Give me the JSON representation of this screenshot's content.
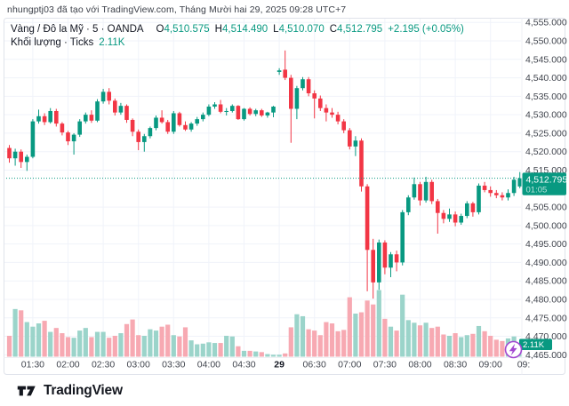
{
  "attribution": "nhungptj03 đã tạo với TradingView.com, Tháng Mười hai 29, 2025 09:28 UTC+7",
  "legend": {
    "symbol": "Vàng / Đô la Mỹ · 5 · OANDA",
    "ohlc": [
      {
        "label": "O",
        "value": "4,510.575"
      },
      {
        "label": "H",
        "value": "4,514.490"
      },
      {
        "label": "L",
        "value": "4,510.070"
      },
      {
        "label": "C",
        "value": "4,512.795"
      }
    ],
    "change": "+2.195 (+0.05%)",
    "volume_label": "Khối lượng · Ticks",
    "volume_value": "2.11K"
  },
  "price_axis": {
    "labels": [
      {
        "text": "4,555.000",
        "value": 4555
      },
      {
        "text": "4,550.000",
        "value": 4550
      },
      {
        "text": "4,545.000",
        "value": 4545
      },
      {
        "text": "4,540.000",
        "value": 4540
      },
      {
        "text": "4,535.000",
        "value": 4535
      },
      {
        "text": "4,530.000",
        "value": 4530
      },
      {
        "text": "4,525.000",
        "value": 4525
      },
      {
        "text": "4,520.000",
        "value": 4520
      },
      {
        "text": "4,515.000",
        "value": 4515
      },
      {
        "text": "4,505.000",
        "value": 4505
      },
      {
        "text": "4,500.000",
        "value": 4500
      },
      {
        "text": "4,495.000",
        "value": 4495
      },
      {
        "text": "4,490.000",
        "value": 4490
      },
      {
        "text": "4,485.000",
        "value": 4485
      },
      {
        "text": "4,480.000",
        "value": 4480
      },
      {
        "text": "4,475.000",
        "value": 4475
      },
      {
        "text": "4,470.000",
        "value": 4470
      },
      {
        "text": "4,465.000",
        "value": 4465
      }
    ],
    "current_price_label": "4,512.795",
    "countdown": "01:05",
    "volume_marker": "2.11K"
  },
  "time_axis": {
    "ticks": [
      {
        "label": "01:30",
        "index": 4,
        "bold": false
      },
      {
        "label": "02:00",
        "index": 10,
        "bold": false
      },
      {
        "label": "02:30",
        "index": 16,
        "bold": false
      },
      {
        "label": "03:00",
        "index": 22,
        "bold": false
      },
      {
        "label": "03:30",
        "index": 28,
        "bold": false
      },
      {
        "label": "04:00",
        "index": 34,
        "bold": false
      },
      {
        "label": "04:30",
        "index": 40,
        "bold": false
      },
      {
        "label": "29",
        "index": 46,
        "bold": true
      },
      {
        "label": "06:30",
        "index": 52,
        "bold": false
      },
      {
        "label": "07:00",
        "index": 58,
        "bold": false
      },
      {
        "label": "07:30",
        "index": 64,
        "bold": false
      },
      {
        "label": "08:00",
        "index": 70,
        "bold": false
      },
      {
        "label": "08:30",
        "index": 76,
        "bold": false
      },
      {
        "label": "09:00",
        "index": 82,
        "bold": false
      },
      {
        "label": "09:",
        "index": 88,
        "bold": false
      }
    ]
  },
  "footer": {
    "logo_text": "TradingView"
  },
  "colors": {
    "up": "#089981",
    "down": "#F23645",
    "vol_up": "#9BD4CA",
    "vol_down": "#F7A9B2",
    "badge_bg": "#089981",
    "grid": "#F0F3FA",
    "axis_text": "#42464F",
    "bold_text": "#131722",
    "border": "#E0E3EB",
    "flash_icon": "#A347D1"
  },
  "chart_data": {
    "type": "candlestick+volume",
    "title": "Vàng / Đô la Mỹ (Gold / US Dollar), 5-minute, OANDA, Ticks volume",
    "timezone": "UTC+7",
    "ylabel": "price",
    "ylim": [
      4463,
      4557
    ],
    "grid": true,
    "current_price": 4512.795,
    "countdown": "01:05",
    "last_volume_k": 2.11,
    "volume_unit": "K ticks",
    "candles": [
      {
        "t": "01:10",
        "o": 4521.0,
        "h": 4521.8,
        "l": 4517.0,
        "c": 4518.2,
        "v": 3.2
      },
      {
        "t": "01:15",
        "o": 4518.2,
        "h": 4520.8,
        "l": 4516.2,
        "c": 4520.0,
        "v": 7.3
      },
      {
        "t": "01:20",
        "o": 4520.0,
        "h": 4520.6,
        "l": 4515.6,
        "c": 4517.2,
        "v": 7.1
      },
      {
        "t": "01:25",
        "o": 4517.2,
        "h": 4519.2,
        "l": 4514.8,
        "c": 4518.6,
        "v": 5.3
      },
      {
        "t": "01:30",
        "o": 4518.6,
        "h": 4528.8,
        "l": 4518.2,
        "c": 4528.2,
        "v": 4.6
      },
      {
        "t": "01:35",
        "o": 4528.2,
        "h": 4531.4,
        "l": 4527.6,
        "c": 4529.6,
        "v": 5.1
      },
      {
        "t": "01:40",
        "o": 4529.6,
        "h": 4530.4,
        "l": 4527.2,
        "c": 4528.0,
        "v": 5.5
      },
      {
        "t": "01:45",
        "o": 4528.0,
        "h": 4531.8,
        "l": 4527.6,
        "c": 4531.0,
        "v": 3.8
      },
      {
        "t": "01:50",
        "o": 4531.0,
        "h": 4531.6,
        "l": 4526.8,
        "c": 4527.6,
        "v": 4.4
      },
      {
        "t": "01:55",
        "o": 4527.6,
        "h": 4528.0,
        "l": 4524.4,
        "c": 4525.2,
        "v": 3.6
      },
      {
        "t": "02:00",
        "o": 4525.2,
        "h": 4525.6,
        "l": 4521.8,
        "c": 4522.8,
        "v": 3.0
      },
      {
        "t": "02:05",
        "o": 4522.8,
        "h": 4525.0,
        "l": 4519.2,
        "c": 4524.6,
        "v": 2.9
      },
      {
        "t": "02:10",
        "o": 4524.6,
        "h": 4528.8,
        "l": 4524.0,
        "c": 4528.2,
        "v": 4.0
      },
      {
        "t": "02:15",
        "o": 4528.2,
        "h": 4530.6,
        "l": 4527.6,
        "c": 4530.0,
        "v": 4.4
      },
      {
        "t": "02:20",
        "o": 4530.0,
        "h": 4531.2,
        "l": 4527.8,
        "c": 4528.4,
        "v": 3.0
      },
      {
        "t": "02:25",
        "o": 4528.4,
        "h": 4534.2,
        "l": 4528.0,
        "c": 4533.6,
        "v": 3.8
      },
      {
        "t": "02:30",
        "o": 4533.6,
        "h": 4537.0,
        "l": 4533.0,
        "c": 4536.2,
        "v": 3.8
      },
      {
        "t": "02:35",
        "o": 4536.2,
        "h": 4537.2,
        "l": 4532.8,
        "c": 4533.8,
        "v": 2.9
      },
      {
        "t": "02:40",
        "o": 4533.8,
        "h": 4534.4,
        "l": 4529.8,
        "c": 4530.6,
        "v": 3.2
      },
      {
        "t": "02:45",
        "o": 4530.6,
        "h": 4533.2,
        "l": 4530.0,
        "c": 4532.4,
        "v": 3.6
      },
      {
        "t": "02:50",
        "o": 4532.4,
        "h": 4532.8,
        "l": 4527.8,
        "c": 4528.6,
        "v": 5.0
      },
      {
        "t": "02:55",
        "o": 4528.6,
        "h": 4529.0,
        "l": 4524.2,
        "c": 4525.4,
        "v": 5.7
      },
      {
        "t": "03:00",
        "o": 4525.4,
        "h": 4526.0,
        "l": 4520.4,
        "c": 4522.6,
        "v": 3.3
      },
      {
        "t": "03:05",
        "o": 4522.6,
        "h": 4524.8,
        "l": 4520.0,
        "c": 4524.2,
        "v": 3.2
      },
      {
        "t": "03:10",
        "o": 4524.2,
        "h": 4526.8,
        "l": 4523.6,
        "c": 4526.4,
        "v": 4.2
      },
      {
        "t": "03:15",
        "o": 4526.4,
        "h": 4529.8,
        "l": 4525.8,
        "c": 4529.2,
        "v": 4.0
      },
      {
        "t": "03:20",
        "o": 4529.2,
        "h": 4531.2,
        "l": 4527.6,
        "c": 4528.0,
        "v": 4.6
      },
      {
        "t": "03:25",
        "o": 4528.0,
        "h": 4528.6,
        "l": 4524.8,
        "c": 4525.4,
        "v": 4.9
      },
      {
        "t": "03:30",
        "o": 4525.4,
        "h": 4531.0,
        "l": 4524.8,
        "c": 4530.4,
        "v": 3.3
      },
      {
        "t": "03:35",
        "o": 4530.4,
        "h": 4530.8,
        "l": 4526.8,
        "c": 4527.2,
        "v": 3.1
      },
      {
        "t": "03:40",
        "o": 4527.2,
        "h": 4528.2,
        "l": 4525.6,
        "c": 4526.0,
        "v": 4.5
      },
      {
        "t": "03:45",
        "o": 4526.0,
        "h": 4528.0,
        "l": 4525.4,
        "c": 4527.6,
        "v": 2.5
      },
      {
        "t": "03:50",
        "o": 4527.6,
        "h": 4529.4,
        "l": 4527.0,
        "c": 4528.8,
        "v": 1.9
      },
      {
        "t": "03:55",
        "o": 4528.8,
        "h": 4530.6,
        "l": 4528.2,
        "c": 4530.0,
        "v": 2.0
      },
      {
        "t": "04:00",
        "o": 4530.0,
        "h": 4532.8,
        "l": 4529.6,
        "c": 4532.2,
        "v": 2.2
      },
      {
        "t": "04:05",
        "o": 4532.2,
        "h": 4533.4,
        "l": 4531.6,
        "c": 4532.8,
        "v": 2.1
      },
      {
        "t": "04:10",
        "o": 4532.8,
        "h": 4534.0,
        "l": 4530.4,
        "c": 4530.8,
        "v": 2.1
      },
      {
        "t": "04:15",
        "o": 4530.8,
        "h": 4531.8,
        "l": 4529.8,
        "c": 4531.0,
        "v": 3.2
      },
      {
        "t": "04:20",
        "o": 4531.0,
        "h": 4532.8,
        "l": 4530.6,
        "c": 4532.4,
        "v": 3.1
      },
      {
        "t": "04:25",
        "o": 4532.4,
        "h": 4532.6,
        "l": 4528.6,
        "c": 4528.8,
        "v": 1.6
      },
      {
        "t": "04:30",
        "o": 4528.8,
        "h": 4531.8,
        "l": 4528.4,
        "c": 4531.6,
        "v": 0.9
      },
      {
        "t": "04:35",
        "o": 4531.6,
        "h": 4532.0,
        "l": 4529.8,
        "c": 4530.2,
        "v": 0.9
      },
      {
        "t": "04:40",
        "o": 4530.2,
        "h": 4531.6,
        "l": 4529.6,
        "c": 4531.2,
        "v": 0.8
      },
      {
        "t": "04:45",
        "o": 4531.2,
        "h": 4531.6,
        "l": 4529.4,
        "c": 4529.8,
        "v": 0.7
      },
      {
        "t": "04:50",
        "o": 4529.8,
        "h": 4530.8,
        "l": 4529.2,
        "c": 4530.6,
        "v": 0.4
      },
      {
        "t": "04:55",
        "o": 4530.6,
        "h": 4532.4,
        "l": 4529.3,
        "c": 4532.2,
        "v": 0.3
      },
      {
        "t": "06:00",
        "o": 4541.6,
        "h": 4542.6,
        "l": 4540.8,
        "c": 4542.0,
        "v": 0.3
      },
      {
        "t": "06:05",
        "o": 4542.2,
        "h": 4547.4,
        "l": 4539.4,
        "c": 4540.0,
        "v": 0.5
      },
      {
        "t": "06:10",
        "o": 4540.0,
        "h": 4540.8,
        "l": 4522.4,
        "c": 4531.6,
        "v": 4.5
      },
      {
        "t": "06:15",
        "o": 4531.6,
        "h": 4537.8,
        "l": 4528.8,
        "c": 4537.2,
        "v": 6.5
      },
      {
        "t": "06:20",
        "o": 4537.2,
        "h": 4540.2,
        "l": 4536.6,
        "c": 4539.6,
        "v": 6.2
      },
      {
        "t": "06:25",
        "o": 4539.6,
        "h": 4540.2,
        "l": 4535.0,
        "c": 4535.8,
        "v": 4.2
      },
      {
        "t": "06:30",
        "o": 4535.8,
        "h": 4536.6,
        "l": 4529.0,
        "c": 4534.4,
        "v": 4.0
      },
      {
        "t": "06:35",
        "o": 4534.4,
        "h": 4535.2,
        "l": 4531.0,
        "c": 4531.8,
        "v": 3.3
      },
      {
        "t": "06:40",
        "o": 4531.8,
        "h": 4532.8,
        "l": 4528.2,
        "c": 4530.6,
        "v": 5.3
      },
      {
        "t": "06:45",
        "o": 4530.6,
        "h": 4531.8,
        "l": 4529.2,
        "c": 4530.0,
        "v": 5.1
      },
      {
        "t": "06:50",
        "o": 4530.0,
        "h": 4530.8,
        "l": 4527.4,
        "c": 4528.2,
        "v": 3.9
      },
      {
        "t": "06:55",
        "o": 4528.2,
        "h": 4528.8,
        "l": 4525.0,
        "c": 4525.8,
        "v": 4.1
      },
      {
        "t": "07:00",
        "o": 4525.8,
        "h": 4526.4,
        "l": 4520.6,
        "c": 4521.4,
        "v": 9.1
      },
      {
        "t": "07:05",
        "o": 4521.4,
        "h": 4524.2,
        "l": 4518.8,
        "c": 4523.0,
        "v": 6.6
      },
      {
        "t": "07:10",
        "o": 4523.0,
        "h": 4523.6,
        "l": 4509.2,
        "c": 4510.6,
        "v": 6.8
      },
      {
        "t": "07:15",
        "o": 4510.6,
        "h": 4511.2,
        "l": 4482.2,
        "c": 4493.4,
        "v": 8.6
      },
      {
        "t": "07:20",
        "o": 4493.4,
        "h": 4496.4,
        "l": 4480.2,
        "c": 4484.6,
        "v": 8.0
      },
      {
        "t": "07:25",
        "o": 4484.6,
        "h": 4496.2,
        "l": 4482.6,
        "c": 4495.4,
        "v": 10.2
      },
      {
        "t": "07:30",
        "o": 4495.4,
        "h": 4496.0,
        "l": 4486.8,
        "c": 4488.6,
        "v": 5.8
      },
      {
        "t": "07:35",
        "o": 4488.6,
        "h": 4492.8,
        "l": 4486.0,
        "c": 4492.2,
        "v": 4.6
      },
      {
        "t": "07:40",
        "o": 4492.2,
        "h": 4493.2,
        "l": 4487.6,
        "c": 4490.0,
        "v": 4.0
      },
      {
        "t": "07:45",
        "o": 4490.0,
        "h": 4504.2,
        "l": 4489.2,
        "c": 4503.6,
        "v": 9.5
      },
      {
        "t": "07:50",
        "o": 4503.6,
        "h": 4508.2,
        "l": 4502.8,
        "c": 4507.6,
        "v": 5.6
      },
      {
        "t": "07:55",
        "o": 4507.6,
        "h": 4513.0,
        "l": 4507.0,
        "c": 4511.2,
        "v": 5.2
      },
      {
        "t": "08:00",
        "o": 4511.2,
        "h": 4511.8,
        "l": 4505.4,
        "c": 4506.8,
        "v": 4.8
      },
      {
        "t": "08:05",
        "o": 4506.8,
        "h": 4513.2,
        "l": 4506.2,
        "c": 4511.8,
        "v": 5.2
      },
      {
        "t": "08:10",
        "o": 4511.8,
        "h": 4512.4,
        "l": 4505.8,
        "c": 4506.6,
        "v": 4.4
      },
      {
        "t": "08:15",
        "o": 4506.6,
        "h": 4507.2,
        "l": 4497.8,
        "c": 4503.4,
        "v": 4.6
      },
      {
        "t": "08:20",
        "o": 4503.4,
        "h": 4504.2,
        "l": 4500.6,
        "c": 4501.8,
        "v": 3.4
      },
      {
        "t": "08:25",
        "o": 4501.8,
        "h": 4504.6,
        "l": 4501.0,
        "c": 4503.0,
        "v": 3.2
      },
      {
        "t": "08:30",
        "o": 4503.0,
        "h": 4503.8,
        "l": 4499.8,
        "c": 4500.8,
        "v": 3.6
      },
      {
        "t": "08:35",
        "o": 4500.8,
        "h": 4503.2,
        "l": 4500.2,
        "c": 4502.6,
        "v": 3.0
      },
      {
        "t": "08:40",
        "o": 4502.6,
        "h": 4506.6,
        "l": 4502.0,
        "c": 4506.0,
        "v": 3.3
      },
      {
        "t": "08:45",
        "o": 4506.0,
        "h": 4506.4,
        "l": 4502.4,
        "c": 4503.6,
        "v": 3.5
      },
      {
        "t": "08:50",
        "o": 4503.6,
        "h": 4511.4,
        "l": 4503.0,
        "c": 4510.8,
        "v": 4.7
      },
      {
        "t": "08:55",
        "o": 4510.8,
        "h": 4511.8,
        "l": 4509.0,
        "c": 4509.6,
        "v": 3.9
      },
      {
        "t": "09:00",
        "o": 4509.6,
        "h": 4510.6,
        "l": 4507.8,
        "c": 4508.8,
        "v": 3.2
      },
      {
        "t": "09:05",
        "o": 4508.8,
        "h": 4509.6,
        "l": 4507.4,
        "c": 4508.2,
        "v": 2.6
      },
      {
        "t": "09:10",
        "o": 4508.2,
        "h": 4509.0,
        "l": 4506.8,
        "c": 4507.6,
        "v": 2.4
      },
      {
        "t": "09:15",
        "o": 4507.6,
        "h": 4509.8,
        "l": 4506.8,
        "c": 4508.8,
        "v": 2.8
      },
      {
        "t": "09:20",
        "o": 4508.8,
        "h": 4513.2,
        "l": 4508.0,
        "c": 4512.4,
        "v": 3.1
      },
      {
        "t": "09:25",
        "o": 4510.575,
        "h": 4514.49,
        "l": 4510.07,
        "c": 4512.795,
        "v": 2.11
      }
    ]
  }
}
